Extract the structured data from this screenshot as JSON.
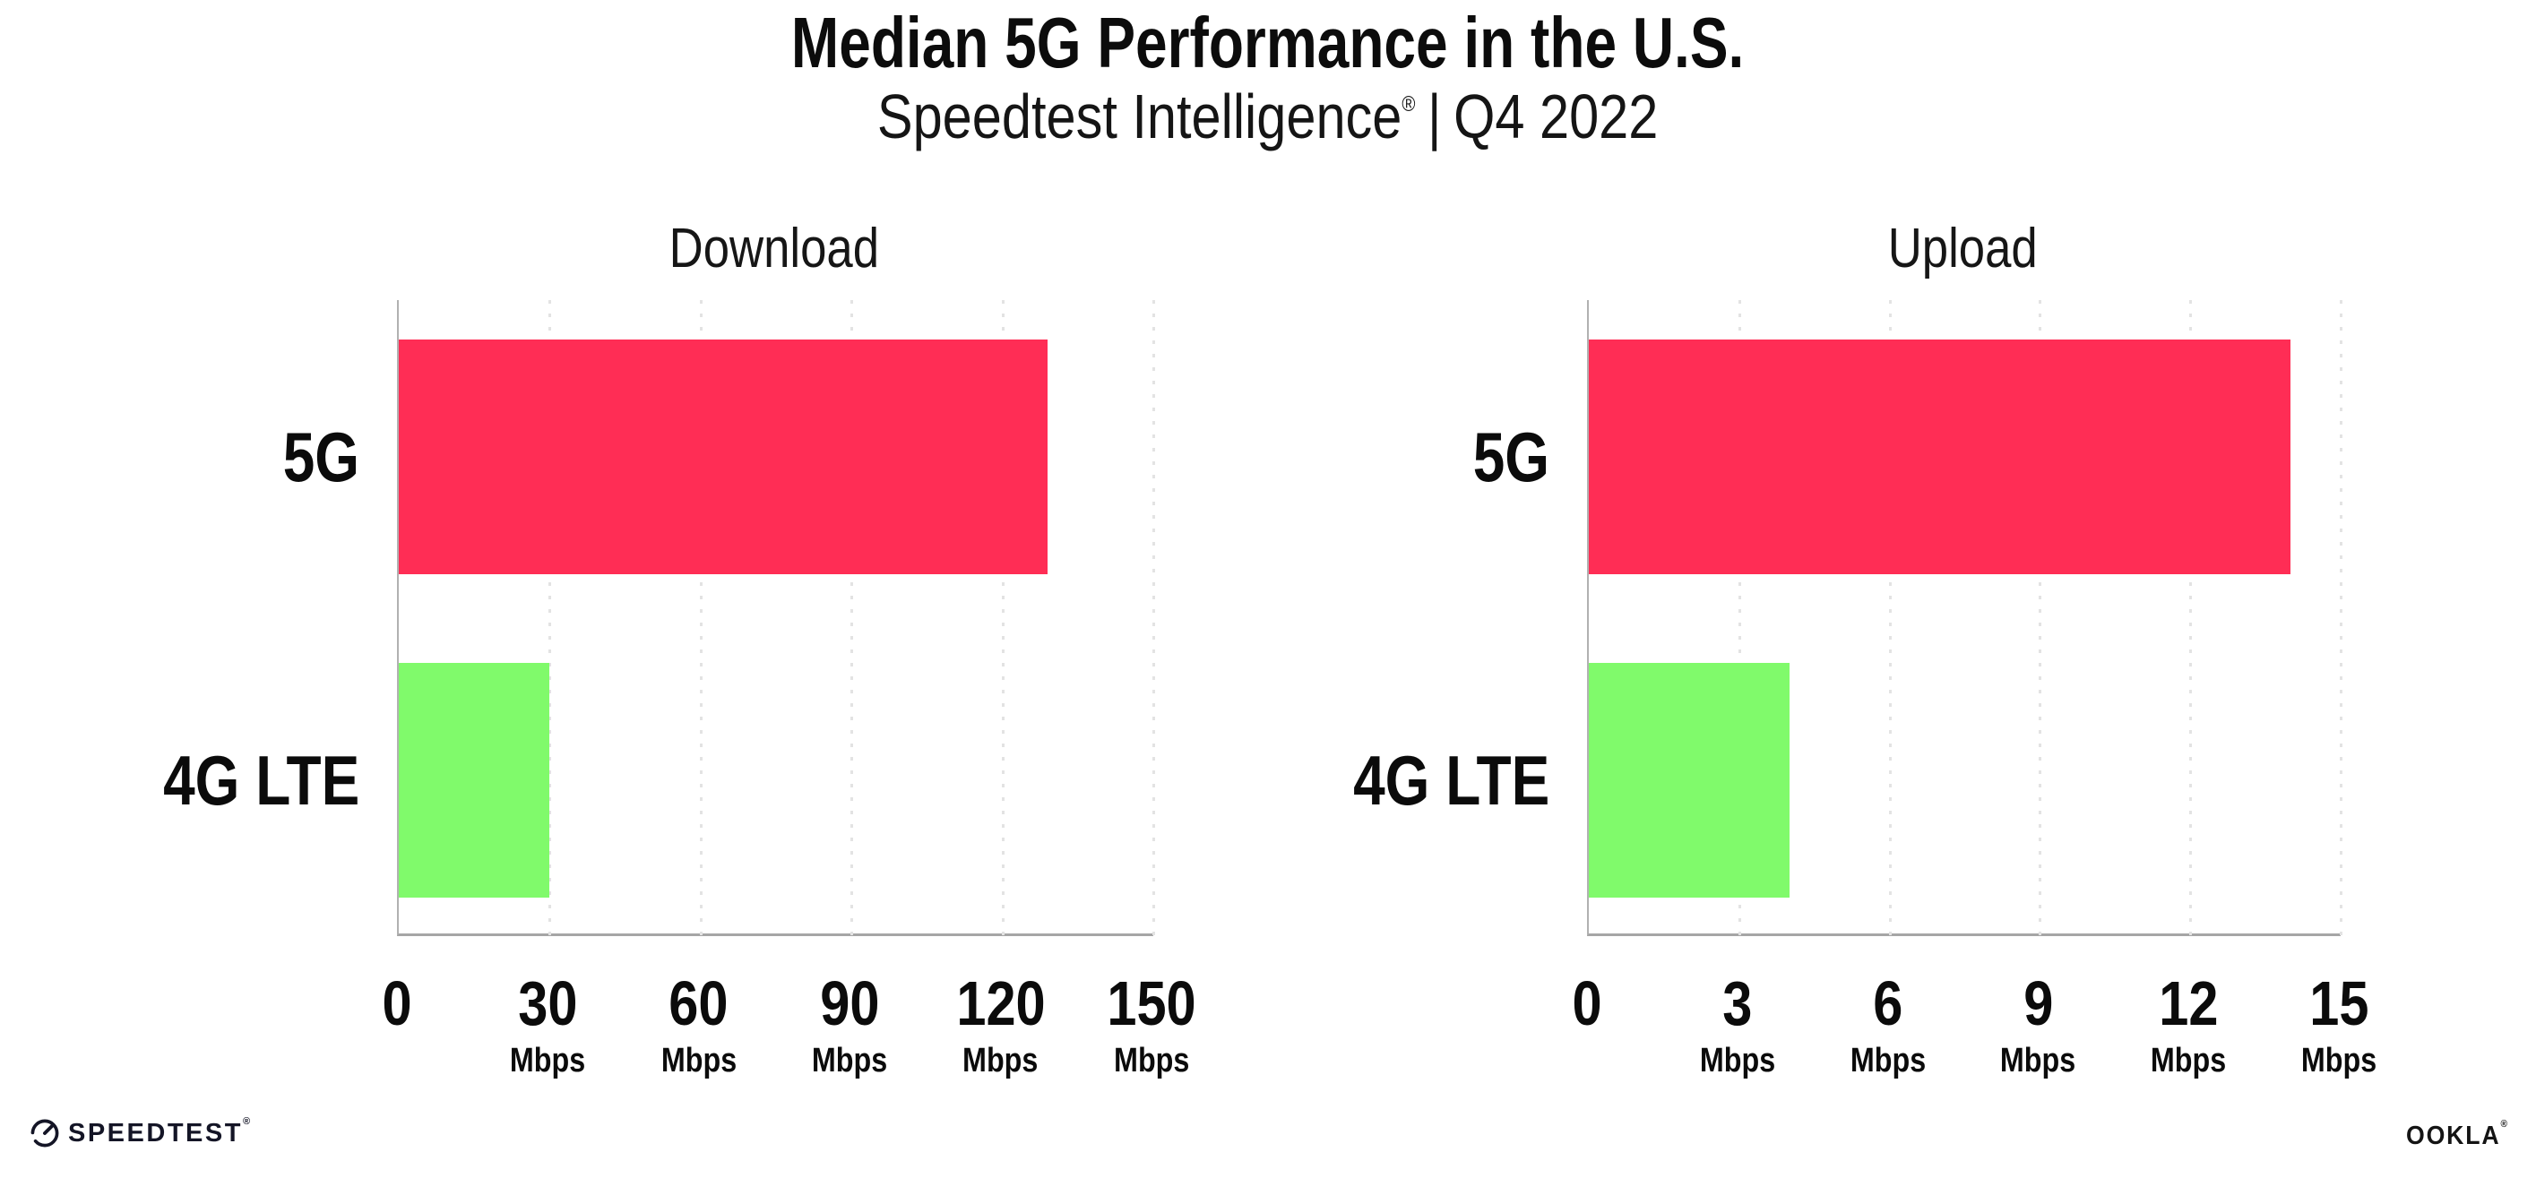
{
  "header": {
    "title": "Median 5G Performance in the U.S.",
    "subtitle_brand": "Speedtest Intelligence",
    "subtitle_reg": "®",
    "subtitle_separator": "|",
    "subtitle_period": "Q4 2022"
  },
  "chart_data": [
    {
      "type": "bar",
      "orientation": "horizontal",
      "title": "Download",
      "categories": [
        "5G",
        "4G LTE"
      ],
      "values": [
        129,
        30
      ],
      "unit": "Mbps",
      "xlim": [
        0,
        150
      ],
      "ticks": [
        0,
        30,
        60,
        90,
        120,
        150
      ],
      "bar_colors": [
        "#FF2D55",
        "#80FA6B"
      ],
      "grid": "vertical-dotted",
      "legend": "none"
    },
    {
      "type": "bar",
      "orientation": "horizontal",
      "title": "Upload",
      "categories": [
        "5G",
        "4G LTE"
      ],
      "values": [
        14,
        4
      ],
      "unit": "Mbps",
      "xlim": [
        0,
        15
      ],
      "ticks": [
        0,
        3,
        6,
        9,
        12,
        15
      ],
      "bar_colors": [
        "#FF2D55",
        "#80FA6B"
      ],
      "grid": "vertical-dotted",
      "legend": "none"
    }
  ],
  "footer": {
    "speedtest_logo": "SPEEDTEST",
    "speedtest_reg": "®",
    "ookla_logo": "OOKLA",
    "ookla_reg": "®"
  },
  "style": {
    "bar_red": "#FF2D55",
    "bar_green": "#80FA6B",
    "axis_color": "#a6a6a6",
    "grid_color": "#e3e3e3",
    "text_color": "#111111"
  }
}
